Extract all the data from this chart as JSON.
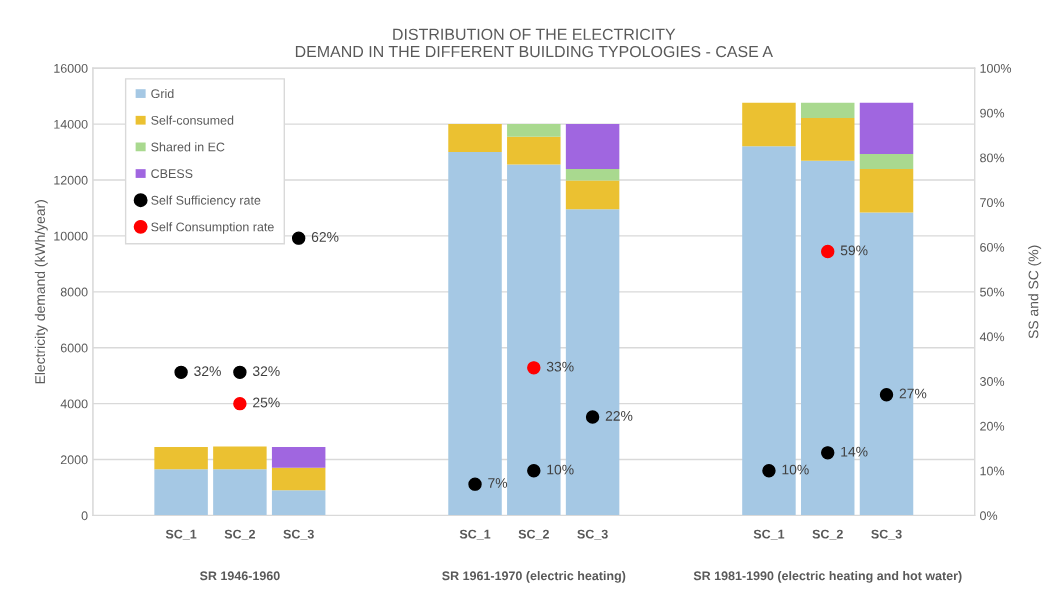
{
  "chart_data": {
    "type": "bar",
    "stacked": true,
    "title": "DISTRIBUTION OF THE ELECTRICITY\nDEMAND IN THE DIFFERENT BUILDING TYPOLOGIES - CASE A",
    "ylabel": "Electricity demand (kWh/year)",
    "y2label": "SS and SC (%)",
    "categories": [
      "SC_1",
      "SC_2",
      "SC_3",
      null,
      null,
      "SC_1",
      "SC_2",
      "SC_3",
      null,
      null,
      "SC_1",
      "SC_2",
      "SC_3"
    ],
    "annotations": [
      "SR 1946-1960",
      "SR 1961-1970 (electric heating)",
      "SR 1981-1990 (electric heating and hot water)"
    ],
    "series": [
      {
        "name": "Grid",
        "color": "#a5c8e4",
        "values": [
          1650,
          1650,
          900,
          null,
          null,
          13000,
          12550,
          10950,
          null,
          null,
          13210,
          12690,
          10840
        ]
      },
      {
        "name": "Self-consumed",
        "color": "#ebc131",
        "values": [
          800,
          820,
          810,
          null,
          null,
          1000,
          1000,
          1030,
          null,
          null,
          1550,
          1530,
          1550
        ]
      },
      {
        "name": "Shared in EC",
        "color": "#a9d98f",
        "values": [
          null,
          null,
          null,
          null,
          null,
          null,
          450,
          410,
          null,
          null,
          null,
          540,
          540
        ]
      },
      {
        "name": "CBESS",
        "color": "#a066e0",
        "values": [
          null,
          null,
          740,
          null,
          null,
          null,
          null,
          1610,
          null,
          null,
          null,
          null,
          1830
        ]
      },
      {
        "name": "Self Sufficiency rate",
        "type": "scatter",
        "axis": "y2",
        "color": "#000000",
        "values": [
          32,
          32,
          62,
          null,
          null,
          7,
          10,
          22,
          null,
          null,
          10,
          14,
          27
        ],
        "value_labels": [
          "32%",
          "32%",
          "62%",
          null,
          null,
          "7%",
          "10%",
          "22%",
          null,
          null,
          "10%",
          "14%",
          "27%"
        ]
      },
      {
        "name": "Self Consumption rate",
        "type": "scatter",
        "axis": "y2",
        "color": "#ff0000",
        "values": [
          null,
          25,
          null,
          null,
          null,
          null,
          33,
          null,
          null,
          null,
          null,
          59,
          null
        ],
        "value_labels": [
          null,
          "25%",
          null,
          null,
          null,
          null,
          "33%",
          null,
          null,
          null,
          null,
          "59%",
          null
        ]
      }
    ],
    "ylim": [
      0,
      16000
    ],
    "yticks": [
      0,
      2000,
      4000,
      6000,
      8000,
      10000,
      12000,
      14000,
      16000
    ],
    "y2lim": [
      0,
      100
    ],
    "y2ticks": [
      {
        "value": 0,
        "label": "0%"
      },
      {
        "value": 10,
        "label": "10%"
      },
      {
        "value": 20,
        "label": "20%"
      },
      {
        "value": 30,
        "label": "30%"
      },
      {
        "value": 40,
        "label": "40%"
      },
      {
        "value": 50,
        "label": "50%"
      },
      {
        "value": 60,
        "label": "60%"
      },
      {
        "value": 70,
        "label": "70%"
      },
      {
        "value": 80,
        "label": "80%"
      },
      {
        "value": 90,
        "label": "90%"
      },
      {
        "value": 100,
        "label": "100%"
      }
    ],
    "grid": "y",
    "legend": "top left",
    "marker": "circle"
  }
}
